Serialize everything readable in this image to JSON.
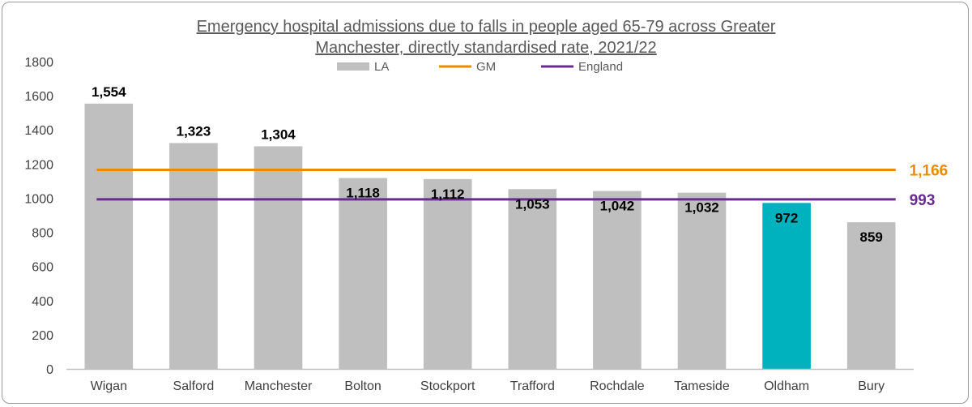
{
  "chart_data": {
    "type": "bar",
    "title_lines": [
      "Emergency hospital admissions due to falls in people aged 65-79 across Greater",
      "Manchester, directly standardised rate, 2021/22"
    ],
    "categories": [
      "Wigan",
      "Salford",
      "Manchester",
      "Bolton",
      "Stockport",
      "Trafford",
      "Rochdale",
      "Tameside",
      "Oldham",
      "Bury"
    ],
    "values": [
      1554,
      1323,
      1304,
      1118,
      1112,
      1053,
      1042,
      1032,
      972,
      859
    ],
    "value_labels": [
      "1,554",
      "1,323",
      "1,304",
      "1,118",
      "1,112",
      "1,053",
      "1,042",
      "1,032",
      "972",
      "859"
    ],
    "highlight_category": "Oldham",
    "ylim": [
      0,
      1800
    ],
    "yticks": [
      0,
      200,
      400,
      600,
      800,
      1000,
      1200,
      1400,
      1600,
      1800
    ],
    "legend_position": "top",
    "legend": [
      {
        "name": "LA",
        "kind": "bar",
        "color": "#bfbfbf"
      },
      {
        "name": "GM",
        "kind": "line",
        "color": "#ed8b00"
      },
      {
        "name": "England",
        "kind": "line",
        "color": "#6a2c91"
      }
    ],
    "reference_lines": [
      {
        "name": "GM",
        "value": 1166,
        "label": "1,166",
        "color": "#ed8b00"
      },
      {
        "name": "England",
        "value": 993,
        "label": "993",
        "color": "#6a2c91"
      }
    ],
    "colors": {
      "bar": "#bfbfbf",
      "highlight": "#00b2be",
      "axis": "#bfbfbf"
    }
  }
}
